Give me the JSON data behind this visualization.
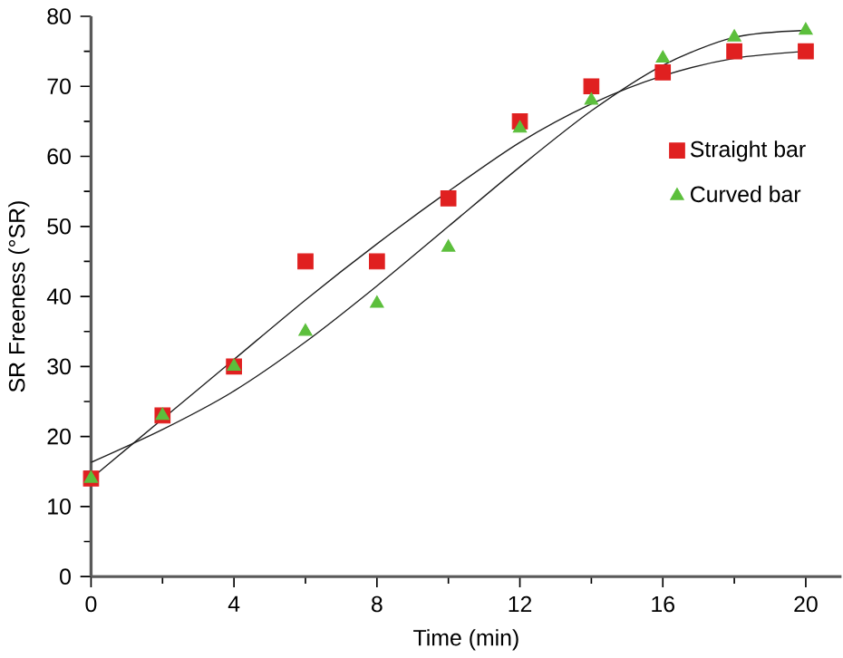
{
  "chart_data": {
    "type": "scatter",
    "xlabel": "Time (min)",
    "ylabel": "SR Freeness (°SR)",
    "x": [
      0,
      2,
      4,
      6,
      8,
      10,
      12,
      14,
      16,
      18,
      20
    ],
    "xlim": [
      0,
      21
    ],
    "ylim": [
      0,
      80
    ],
    "xticks": [
      0,
      4,
      8,
      12,
      16,
      20
    ],
    "yticks": [
      0,
      10,
      20,
      30,
      40,
      50,
      60,
      70,
      80
    ],
    "legend": "right",
    "grid": false,
    "series": [
      {
        "name": "Straight bar",
        "color": "#e02020",
        "marker": "square",
        "values": [
          14,
          23,
          30,
          45,
          45,
          54,
          65,
          70,
          72,
          75,
          75
        ]
      },
      {
        "name": "Curved bar",
        "color": "#5cbf3c",
        "marker": "triangle",
        "values": [
          14,
          23,
          30,
          35,
          39,
          47,
          64,
          68,
          74,
          77,
          78
        ]
      },
      {
        "type": "line",
        "color": "#202020",
        "line_style": "solid",
        "marker": "none",
        "x": [
          0,
          2,
          4,
          6,
          8,
          10,
          12,
          14,
          16,
          18,
          20
        ],
        "values": [
          14,
          22.5,
          31,
          39.5,
          47.5,
          55,
          62,
          67.5,
          71.5,
          74,
          75
        ]
      },
      {
        "type": "line",
        "color": "#202020",
        "line_style": "solid",
        "marker": "none",
        "x": [
          0,
          2,
          4,
          6,
          8,
          10,
          12,
          14,
          16,
          18,
          20
        ],
        "values": [
          16.3,
          21,
          26.5,
          33.5,
          41.5,
          50,
          58.5,
          66.5,
          73,
          77,
          78
        ]
      }
    ]
  }
}
